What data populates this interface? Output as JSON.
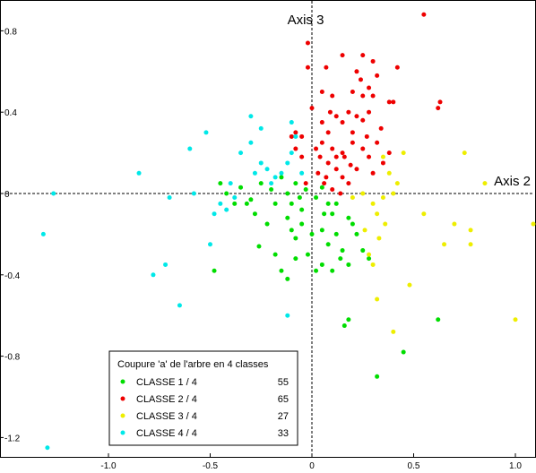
{
  "chart_data": {
    "type": "scatter",
    "xlim": [
      -1.3,
      1.1
    ],
    "ylim": [
      -1.3,
      0.9
    ],
    "x_ticks": [
      -1.0,
      -0.5,
      0,
      0.5,
      1.0
    ],
    "x_tick_labels": [
      "-1.0",
      "-0.5",
      "0",
      "0.5",
      "1.0"
    ],
    "y_ticks": [
      0.8,
      0.4,
      0,
      -0.4,
      -0.8,
      -1.2
    ],
    "y_tick_labels": [
      "0.8",
      "0.4",
      "0",
      "-0.4",
      "-0.8",
      "-1.2"
    ],
    "horizontal_axis_name": "Axis 2",
    "vertical_axis_name": "Axis 3",
    "grid": false,
    "legend": {
      "title": "Coupure 'a' de l'arbre en  4 classes",
      "placement": "bottom-left",
      "entries": [
        {
          "label": "CLASSE  1 / 4",
          "count": "55",
          "color": "#00dd00"
        },
        {
          "label": "CLASSE  2 / 4",
          "count": "65",
          "color": "#ee0000"
        },
        {
          "label": "CLASSE  3 / 4",
          "count": "27",
          "color": "#eeee00"
        },
        {
          "label": "CLASSE  4 / 4",
          "count": "33",
          "color": "#00e8e8"
        }
      ]
    },
    "series": [
      {
        "color": "#00dd00",
        "points": [
          [
            -0.45,
            0.05
          ],
          [
            -0.42,
            0.0
          ],
          [
            -0.38,
            -0.05
          ],
          [
            -0.35,
            0.03
          ],
          [
            -0.3,
            -0.03
          ],
          [
            -0.25,
            0.05
          ],
          [
            -0.2,
            0.02
          ],
          [
            -0.18,
            -0.05
          ],
          [
            -0.15,
            0.08
          ],
          [
            -0.12,
            0.0
          ],
          [
            -0.1,
            -0.05
          ],
          [
            -0.08,
            0.05
          ],
          [
            -0.05,
            -0.08
          ],
          [
            -0.03,
            0.02
          ],
          [
            0.02,
            -0.02
          ],
          [
            0.05,
            0.03
          ],
          [
            0.08,
            -0.05
          ],
          [
            0.1,
            -0.1
          ],
          [
            -0.12,
            -0.12
          ],
          [
            -0.1,
            -0.18
          ],
          [
            -0.08,
            -0.22
          ],
          [
            -0.05,
            -0.15
          ],
          [
            0.0,
            -0.2
          ],
          [
            0.05,
            -0.18
          ],
          [
            0.08,
            -0.25
          ],
          [
            0.12,
            -0.2
          ],
          [
            0.15,
            -0.28
          ],
          [
            0.18,
            -0.35
          ],
          [
            0.22,
            -0.2
          ],
          [
            0.25,
            -0.28
          ],
          [
            -0.22,
            -0.15
          ],
          [
            -0.18,
            -0.3
          ],
          [
            -0.15,
            -0.38
          ],
          [
            -0.08,
            -0.32
          ],
          [
            -0.02,
            -0.3
          ],
          [
            0.05,
            -0.35
          ],
          [
            0.1,
            -0.38
          ],
          [
            -0.48,
            -0.38
          ],
          [
            0.28,
            -0.32
          ],
          [
            0.2,
            -0.15
          ],
          [
            -0.28,
            -0.1
          ],
          [
            -0.32,
            -0.05
          ],
          [
            0.12,
            -0.05
          ],
          [
            0.18,
            -0.12
          ],
          [
            -0.06,
            -0.02
          ],
          [
            0.16,
            -0.65
          ],
          [
            0.18,
            -0.62
          ],
          [
            0.32,
            -0.9
          ],
          [
            0.45,
            -0.78
          ],
          [
            0.62,
            -0.62
          ],
          [
            -0.12,
            -0.42
          ],
          [
            0.02,
            -0.38
          ],
          [
            0.14,
            -0.32
          ],
          [
            -0.26,
            -0.26
          ],
          [
            0.06,
            -0.1
          ]
        ]
      },
      {
        "color": "#ee0000",
        "points": [
          [
            0.55,
            0.88
          ],
          [
            -0.02,
            0.74
          ],
          [
            -0.02,
            0.62
          ],
          [
            0.07,
            0.62
          ],
          [
            0.15,
            0.68
          ],
          [
            0.22,
            0.6
          ],
          [
            0.25,
            0.68
          ],
          [
            0.3,
            0.65
          ],
          [
            0.32,
            0.58
          ],
          [
            0.42,
            0.62
          ],
          [
            0.2,
            0.5
          ],
          [
            0.25,
            0.48
          ],
          [
            0.28,
            0.52
          ],
          [
            0.38,
            0.45
          ],
          [
            0.4,
            0.45
          ],
          [
            0.63,
            0.45
          ],
          [
            0.62,
            0.42
          ],
          [
            0.05,
            0.5
          ],
          [
            0.1,
            0.48
          ],
          [
            0.12,
            0.38
          ],
          [
            0.15,
            0.35
          ],
          [
            0.18,
            0.4
          ],
          [
            0.22,
            0.38
          ],
          [
            0.25,
            0.36
          ],
          [
            0.28,
            0.4
          ],
          [
            0.3,
            0.48
          ],
          [
            0.05,
            0.35
          ],
          [
            0.08,
            0.3
          ],
          [
            -0.05,
            0.28
          ],
          [
            -0.08,
            0.22
          ],
          [
            -0.1,
            0.28
          ],
          [
            -0.08,
            0.3
          ],
          [
            -0.05,
            0.18
          ],
          [
            0.02,
            0.22
          ],
          [
            0.05,
            0.25
          ],
          [
            0.1,
            0.22
          ],
          [
            0.12,
            0.18
          ],
          [
            0.15,
            0.2
          ],
          [
            0.2,
            0.25
          ],
          [
            0.25,
            0.22
          ],
          [
            0.28,
            0.18
          ],
          [
            0.32,
            0.25
          ],
          [
            0.08,
            0.15
          ],
          [
            0.12,
            0.12
          ],
          [
            0.15,
            0.08
          ],
          [
            0.18,
            0.05
          ],
          [
            0.22,
            0.12
          ],
          [
            0.06,
            0.05
          ],
          [
            0.03,
            0.1
          ],
          [
            0.1,
            0.02
          ],
          [
            0.14,
            0.0
          ],
          [
            0.3,
            0.1
          ],
          [
            0.35,
            0.15
          ],
          [
            0.0,
            0.42
          ],
          [
            0.2,
            0.3
          ],
          [
            0.04,
            0.18
          ],
          [
            0.38,
            0.2
          ],
          [
            0.16,
            0.18
          ],
          [
            0.24,
            0.56
          ],
          [
            0.09,
            0.4
          ],
          [
            -0.03,
            0.05
          ],
          [
            0.27,
            0.28
          ],
          [
            0.34,
            0.32
          ],
          [
            0.19,
            0.14
          ],
          [
            0.07,
            0.08
          ]
        ]
      },
      {
        "color": "#eeee00",
        "points": [
          [
            0.25,
            0.0
          ],
          [
            0.3,
            -0.05
          ],
          [
            0.32,
            -0.1
          ],
          [
            0.35,
            -0.02
          ],
          [
            0.38,
            0.1
          ],
          [
            0.42,
            0.05
          ],
          [
            0.35,
            0.18
          ],
          [
            0.45,
            0.2
          ],
          [
            0.55,
            -0.1
          ],
          [
            0.65,
            -0.25
          ],
          [
            0.7,
            -0.15
          ],
          [
            0.75,
            0.2
          ],
          [
            0.78,
            -0.18
          ],
          [
            0.78,
            -0.25
          ],
          [
            0.85,
            0.05
          ],
          [
            1.1,
            -0.15
          ],
          [
            1.0,
            -0.62
          ],
          [
            0.48,
            -0.45
          ],
          [
            0.4,
            -0.68
          ],
          [
            0.32,
            -0.52
          ],
          [
            0.3,
            -0.35
          ],
          [
            0.28,
            -0.3
          ],
          [
            0.33,
            -0.22
          ],
          [
            0.36,
            -0.15
          ],
          [
            0.2,
            -0.02
          ],
          [
            0.4,
            0.0
          ],
          [
            0.26,
            -0.18
          ]
        ]
      },
      {
        "color": "#00e8e8",
        "points": [
          [
            -1.27,
            0.0
          ],
          [
            -1.32,
            -0.2
          ],
          [
            -1.3,
            -1.25
          ],
          [
            -0.85,
            0.1
          ],
          [
            -0.78,
            -0.4
          ],
          [
            -0.72,
            -0.35
          ],
          [
            -0.7,
            -0.02
          ],
          [
            -0.65,
            -0.55
          ],
          [
            -0.6,
            0.22
          ],
          [
            -0.58,
            0.0
          ],
          [
            -0.52,
            0.3
          ],
          [
            -0.5,
            -0.25
          ],
          [
            -0.48,
            -0.1
          ],
          [
            -0.45,
            -0.05
          ],
          [
            -0.42,
            -0.08
          ],
          [
            -0.38,
            -0.02
          ],
          [
            -0.35,
            0.2
          ],
          [
            -0.3,
            0.25
          ],
          [
            -0.28,
            0.1
          ],
          [
            -0.25,
            0.15
          ],
          [
            -0.22,
            0.12
          ],
          [
            -0.2,
            0.05
          ],
          [
            -0.18,
            0.08
          ],
          [
            -0.15,
            0.1
          ],
          [
            -0.12,
            0.15
          ],
          [
            -0.1,
            0.2
          ],
          [
            -0.08,
            0.28
          ],
          [
            -0.1,
            0.35
          ],
          [
            -0.25,
            0.32
          ],
          [
            -0.3,
            0.38
          ],
          [
            -0.12,
            -0.6
          ],
          [
            -0.4,
            0.05
          ],
          [
            -0.05,
            0.1
          ]
        ]
      }
    ]
  }
}
